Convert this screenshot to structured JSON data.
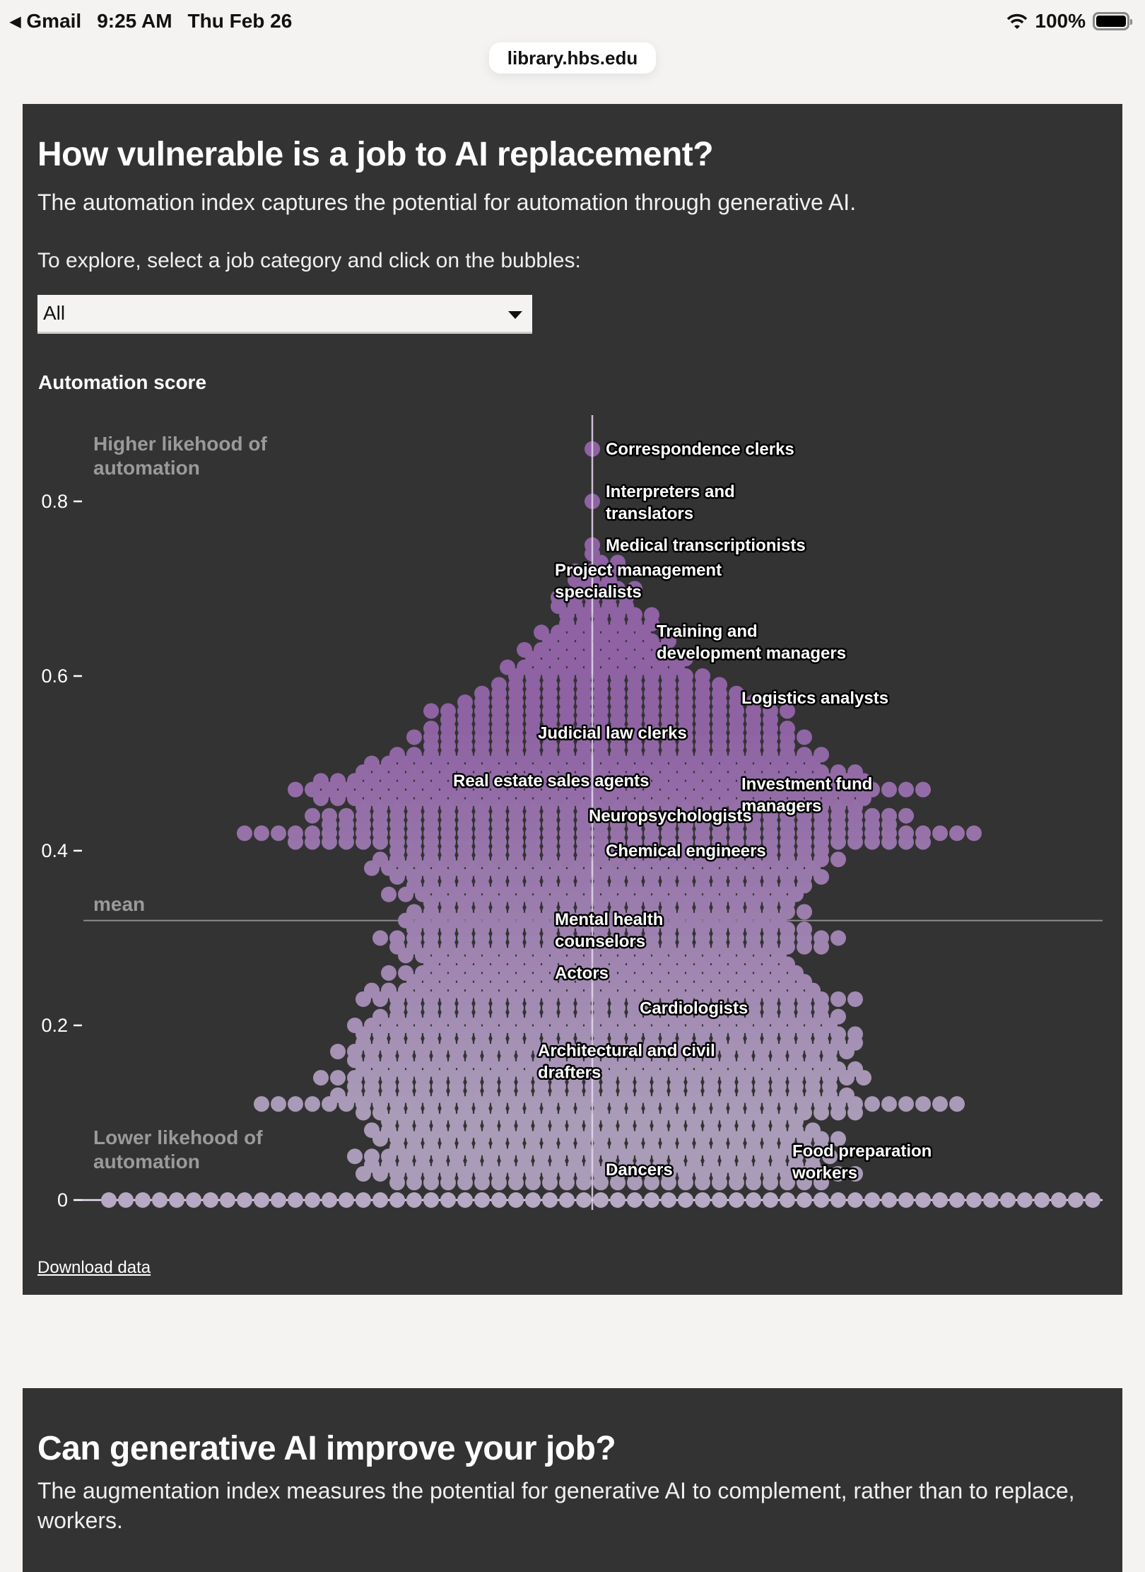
{
  "status_bar": {
    "back_app": "Gmail",
    "time": "9:25 AM",
    "date": "Thu Feb 26",
    "battery": "100%"
  },
  "browser": {
    "url": "library.hbs.edu"
  },
  "section1": {
    "title": "How vulnerable is a job to AI replacement?",
    "subtitle": "The automation index captures the potential for automation through generative AI.",
    "prompt": "To explore, select a job category and click on the bubbles:",
    "category_select": {
      "selected": "All"
    },
    "download_label": "Download data"
  },
  "section2": {
    "title": "Can generative AI improve your job?",
    "subtitle": "The augmentation index measures the potential for generative AI to complement, rather than to replace, workers."
  },
  "colors": {
    "panel_bg": "#333333",
    "bubble_high": "#8e62a3",
    "bubble_low": "#aa9bb8",
    "bubble_zero": "#b7a8c4",
    "mean_line": "#8a8a8a",
    "median_line": "#e6d9f0"
  },
  "chart_data": {
    "type": "scatter",
    "subtype": "beeswarm",
    "title": "Automation score",
    "ylabel": "Automation score",
    "xlabel": "",
    "ylim": [
      0,
      0.9
    ],
    "yticks": [
      0,
      0.2,
      0.4,
      0.6,
      0.8
    ],
    "ytick_labels": [
      "0",
      "0.2",
      "0.4",
      "0.6",
      "0.8"
    ],
    "grid": false,
    "mean": 0.32,
    "annotations": {
      "high": [
        "Higher likehood of",
        "automation"
      ],
      "low": [
        "Lower likehood of",
        "automation"
      ],
      "mean": "mean"
    },
    "bin_step": 0.01,
    "bins": [
      {
        "score": 0.0,
        "count": 60
      },
      {
        "score": 0.02,
        "count": 26
      },
      {
        "score": 0.03,
        "count": 30
      },
      {
        "score": 0.04,
        "count": 27
      },
      {
        "score": 0.05,
        "count": 29
      },
      {
        "score": 0.06,
        "count": 26
      },
      {
        "score": 0.07,
        "count": 28
      },
      {
        "score": 0.08,
        "count": 27
      },
      {
        "score": 0.09,
        "count": 25
      },
      {
        "score": 0.1,
        "count": 30
      },
      {
        "score": 0.11,
        "count": 42
      },
      {
        "score": 0.12,
        "count": 31
      },
      {
        "score": 0.13,
        "count": 29
      },
      {
        "score": 0.14,
        "count": 33
      },
      {
        "score": 0.15,
        "count": 30
      },
      {
        "score": 0.16,
        "count": 29
      },
      {
        "score": 0.17,
        "count": 31
      },
      {
        "score": 0.18,
        "count": 30
      },
      {
        "score": 0.19,
        "count": 30
      },
      {
        "score": 0.2,
        "count": 29
      },
      {
        "score": 0.21,
        "count": 28
      },
      {
        "score": 0.22,
        "count": 26
      },
      {
        "score": 0.23,
        "count": 30
      },
      {
        "score": 0.24,
        "count": 27
      },
      {
        "score": 0.25,
        "count": 24
      },
      {
        "score": 0.26,
        "count": 25
      },
      {
        "score": 0.27,
        "count": 22
      },
      {
        "score": 0.28,
        "count": 23
      },
      {
        "score": 0.29,
        "count": 26
      },
      {
        "score": 0.3,
        "count": 28
      },
      {
        "score": 0.31,
        "count": 24
      },
      {
        "score": 0.32,
        "count": 23
      },
      {
        "score": 0.33,
        "count": 24
      },
      {
        "score": 0.34,
        "count": 22
      },
      {
        "score": 0.35,
        "count": 25
      },
      {
        "score": 0.36,
        "count": 24
      },
      {
        "score": 0.37,
        "count": 26
      },
      {
        "score": 0.38,
        "count": 27
      },
      {
        "score": 0.39,
        "count": 28
      },
      {
        "score": 0.4,
        "count": 26
      },
      {
        "score": 0.41,
        "count": 38
      },
      {
        "score": 0.42,
        "count": 44
      },
      {
        "score": 0.43,
        "count": 34
      },
      {
        "score": 0.44,
        "count": 36
      },
      {
        "score": 0.45,
        "count": 30
      },
      {
        "score": 0.46,
        "count": 33
      },
      {
        "score": 0.47,
        "count": 38
      },
      {
        "score": 0.48,
        "count": 33
      },
      {
        "score": 0.49,
        "count": 30
      },
      {
        "score": 0.5,
        "count": 27
      },
      {
        "score": 0.51,
        "count": 26
      },
      {
        "score": 0.52,
        "count": 22
      },
      {
        "score": 0.53,
        "count": 24
      },
      {
        "score": 0.54,
        "count": 22
      },
      {
        "score": 0.55,
        "count": 20
      },
      {
        "score": 0.56,
        "count": 22
      },
      {
        "score": 0.57,
        "count": 18
      },
      {
        "score": 0.58,
        "count": 16
      },
      {
        "score": 0.59,
        "count": 14
      },
      {
        "score": 0.6,
        "count": 12
      },
      {
        "score": 0.61,
        "count": 11
      },
      {
        "score": 0.62,
        "count": 10
      },
      {
        "score": 0.63,
        "count": 9
      },
      {
        "score": 0.64,
        "count": 8
      },
      {
        "score": 0.65,
        "count": 7
      },
      {
        "score": 0.66,
        "count": 6
      },
      {
        "score": 0.67,
        "count": 6
      },
      {
        "score": 0.68,
        "count": 5
      },
      {
        "score": 0.69,
        "count": 5
      },
      {
        "score": 0.7,
        "count": 4
      },
      {
        "score": 0.71,
        "count": 3
      },
      {
        "score": 0.72,
        "count": 3
      },
      {
        "score": 0.73,
        "count": 2
      },
      {
        "score": 0.74,
        "count": 1
      },
      {
        "score": 0.75,
        "count": 1
      },
      {
        "score": 0.8,
        "count": 1
      },
      {
        "score": 0.86,
        "count": 1
      }
    ],
    "labeled_jobs": [
      {
        "name": [
          "Correspondence clerks"
        ],
        "score": 0.86,
        "side": "right",
        "dx": 0
      },
      {
        "name": [
          "Interpreters and",
          "translators"
        ],
        "score": 0.8,
        "side": "right",
        "dx": 0
      },
      {
        "name": [
          "Medical transcriptionists"
        ],
        "score": 0.75,
        "side": "right",
        "dx": 0
      },
      {
        "name": [
          "Project management",
          "specialists"
        ],
        "score": 0.71,
        "side": "right",
        "dx": -3
      },
      {
        "name": [
          "Training and",
          "development managers"
        ],
        "score": 0.64,
        "side": "right",
        "dx": 3
      },
      {
        "name": [
          "Logistics analysts"
        ],
        "score": 0.575,
        "side": "right",
        "dx": 8
      },
      {
        "name": [
          "Judicial law clerks"
        ],
        "score": 0.535,
        "side": "right",
        "dx": -4
      },
      {
        "name": [
          "Real estate sales agents"
        ],
        "score": 0.48,
        "side": "right",
        "dx": -9
      },
      {
        "name": [
          "Investment fund",
          "managers"
        ],
        "score": 0.465,
        "side": "right",
        "dx": 8
      },
      {
        "name": [
          "Neuropsychologists"
        ],
        "score": 0.44,
        "side": "right",
        "dx": -1
      },
      {
        "name": [
          "Chemical engineers"
        ],
        "score": 0.4,
        "side": "right",
        "dx": 0
      },
      {
        "name": [
          "Mental health",
          "counselors"
        ],
        "score": 0.31,
        "side": "right",
        "dx": -3
      },
      {
        "name": [
          "Actors"
        ],
        "score": 0.26,
        "side": "right",
        "dx": -3
      },
      {
        "name": [
          "Cardiologists"
        ],
        "score": 0.22,
        "side": "right",
        "dx": 2
      },
      {
        "name": [
          "Architectural and civil",
          "drafters"
        ],
        "score": 0.16,
        "side": "right",
        "dx": -4
      },
      {
        "name": [
          "Dancers"
        ],
        "score": 0.035,
        "side": "right",
        "dx": 0
      },
      {
        "name": [
          "Food preparation",
          "workers"
        ],
        "score": 0.045,
        "side": "right",
        "dx": 11
      }
    ]
  }
}
